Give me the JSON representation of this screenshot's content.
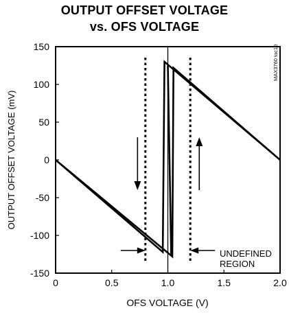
{
  "chart_data": {
    "type": "line",
    "title": [
      "OUTPUT OFFSET VOLTAGE",
      "vs. OFS VOLTAGE"
    ],
    "xlabel": "OFS VOLTAGE (V)",
    "ylabel": "OUTPUT OFFSET VOLTAGE (mV)",
    "xlim": [
      0,
      2.0
    ],
    "ylim": [
      -150,
      150
    ],
    "xticks": [
      0,
      0.5,
      1.0,
      1.5,
      2.0
    ],
    "xtick_labels": [
      "0",
      "0.5",
      "1.0",
      "1.5",
      "2.0"
    ],
    "yticks": [
      150,
      100,
      50,
      0,
      -50,
      -100,
      -150
    ],
    "ytick_labels": [
      "150",
      "100",
      "50",
      "0",
      "-50",
      "-100",
      "-150"
    ],
    "grid": false,
    "series": [
      {
        "values": [
          {
            "x": 0.0,
            "y": 0
          },
          {
            "x": 1.04,
            "y": -128
          },
          {
            "x": 1.05,
            "y": 122
          },
          {
            "x": 2.0,
            "y": 0
          },
          {
            "x": 0.97,
            "y": 130
          },
          {
            "x": 0.955,
            "y": -122
          },
          {
            "x": 0.0,
            "y": 0
          }
        ]
      },
      {
        "values": [
          {
            "x": 1.0,
            "y": 125
          },
          {
            "x": 1.03,
            "y": -125
          }
        ]
      }
    ],
    "reference_lines": {
      "vertical_dashed": [
        0.8,
        1.2
      ],
      "vertical_solid": [
        1.0
      ]
    },
    "arrows": {
      "down": {
        "x": 0.73,
        "y_from": 30,
        "y_to": -40
      },
      "up": {
        "x": 1.28,
        "y_from": -40,
        "y_to": 30
      },
      "region_left": {
        "x_from": 0.58,
        "x_to": 0.8,
        "y": -120
      },
      "region_right": {
        "x_from": 1.42,
        "x_to": 1.2,
        "y": -120
      }
    },
    "annotations": {
      "region_label": [
        "UNDEFINED",
        "REGION"
      ],
      "watermark": "MAX3760 toc10"
    }
  }
}
